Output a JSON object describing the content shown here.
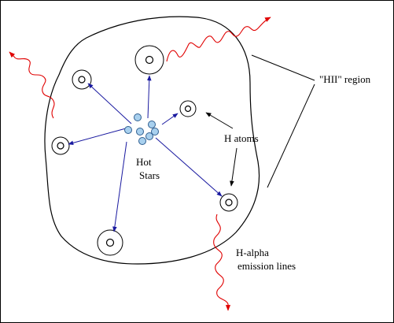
{
  "labels": {
    "hot": "Hot",
    "stars": "Stars",
    "h_atoms": "H atoms",
    "hii_region": "\"HII\" region",
    "h_alpha": "H-alpha",
    "emission_lines": "emission lines"
  },
  "colors": {
    "background": "#ffffff",
    "outline": "#000000",
    "radiation_arrow": "#1a1aa0",
    "star_fill": "#a8d0ee",
    "star_stroke": "#2e5e90",
    "emission_wave": "#e00000"
  }
}
